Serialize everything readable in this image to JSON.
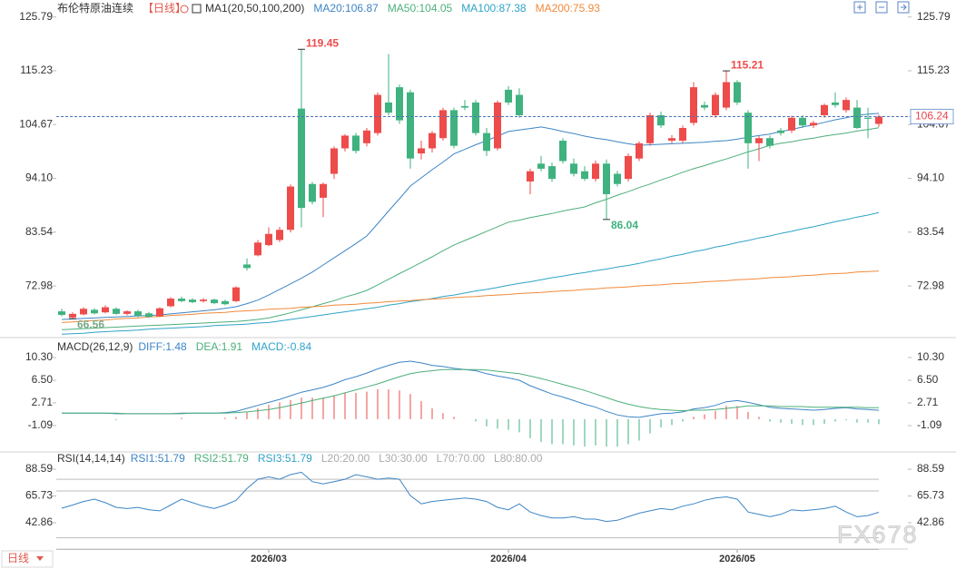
{
  "header": {
    "title": "布伦特原油连续",
    "period": "【日线】",
    "ma_group": "MA1(20,50,100,200)"
  },
  "chart_data": [
    {
      "type": "candlestick",
      "categories": [
        null,
        null,
        null,
        null,
        null,
        null,
        null,
        null,
        null,
        null,
        null,
        null,
        null,
        null,
        null,
        null,
        null,
        null,
        null,
        "2026/03",
        null,
        null,
        null,
        null,
        null,
        null,
        null,
        null,
        null,
        null,
        null,
        null,
        null,
        null,
        null,
        null,
        null,
        null,
        null,
        null,
        null,
        "2026/04",
        null,
        null,
        null,
        null,
        null,
        null,
        null,
        null,
        null,
        null,
        null,
        null,
        null,
        null,
        null,
        null,
        null,
        null,
        null,
        null,
        "2026/05",
        null,
        null,
        null,
        null,
        null,
        null,
        null,
        null,
        null,
        null,
        null,
        null,
        null
      ],
      "open": [
        68.0,
        66.8,
        67.4,
        68.3,
        67.8,
        68.5,
        67.5,
        68.0,
        67.6,
        67.0,
        69.0,
        70.5,
        70.3,
        70.0,
        70.3,
        70.0,
        70.0,
        77.2,
        79.0,
        81.0,
        82.0,
        84.0,
        107.8,
        93.0,
        90.3,
        95.0,
        100.0,
        102.5,
        101.0,
        103.0,
        109.0,
        112.0,
        111.0,
        99.0,
        100.0,
        102.0,
        107.5,
        108.3,
        109.0,
        103.0,
        100.0,
        111.5,
        110.5,
        93.5,
        97.0,
        96.5,
        101.5,
        97.0,
        95.5,
        94.0,
        97.0,
        95.0,
        94.0,
        98.0,
        101.0,
        106.5,
        101.5,
        101.5,
        105.0,
        108.5,
        106.5,
        108.0,
        113.0,
        107.0,
        101.0,
        102.0,
        103.5,
        103.5,
        106.0,
        104.5,
        106.5,
        109.0,
        107.5,
        108.0,
        106.0,
        104.8
      ],
      "high": [
        68.5,
        67.8,
        68.8,
        68.6,
        69.2,
        68.8,
        68.2,
        68.3,
        67.9,
        68.8,
        70.8,
        70.9,
        70.6,
        70.6,
        70.5,
        70.3,
        72.9,
        78.4,
        82.0,
        84.5,
        84.6,
        92.9,
        119.45,
        93.4,
        93.3,
        100.4,
        102.8,
        103.0,
        104.0,
        111.0,
        118.5,
        112.5,
        111.5,
        101.5,
        103.4,
        108.0,
        108.0,
        109.5,
        109.5,
        104.0,
        109.4,
        112.2,
        111.8,
        96.0,
        98.5,
        97.2,
        102.0,
        98.0,
        96.5,
        97.6,
        97.8,
        95.6,
        99.0,
        101.4,
        107.0,
        107.2,
        102.6,
        104.5,
        113.0,
        109.2,
        111.0,
        115.21,
        113.4,
        107.5,
        102.4,
        102.5,
        104.0,
        106.4,
        106.5,
        105.4,
        108.8,
        111.0,
        110.0,
        109.5,
        108.0,
        106.6
      ],
      "low": [
        67.0,
        66.56,
        67.2,
        67.4,
        67.6,
        67.3,
        67.2,
        66.8,
        66.7,
        66.9,
        68.8,
        69.8,
        69.6,
        69.7,
        69.4,
        69.2,
        69.8,
        76.0,
        78.8,
        80.8,
        81.6,
        83.5,
        84.5,
        89.0,
        86.5,
        94.0,
        99.4,
        99.0,
        100.4,
        102.5,
        106.5,
        104.8,
        96.0,
        97.8,
        99.2,
        101.5,
        100.0,
        107.5,
        102.5,
        98.5,
        99.6,
        108.5,
        106.0,
        91.0,
        95.5,
        93.4,
        97.0,
        94.5,
        93.6,
        93.5,
        86.04,
        92.5,
        93.5,
        97.5,
        100.5,
        104.0,
        101.0,
        101.0,
        104.5,
        107.5,
        106.0,
        107.5,
        108.5,
        96.0,
        97.5,
        100.0,
        102.5,
        103.0,
        104.0,
        104.0,
        106.0,
        108.0,
        107.0,
        103.8,
        102.0,
        104.2
      ],
      "close": [
        67.3,
        67.5,
        68.5,
        67.6,
        68.8,
        67.5,
        68.0,
        67.1,
        66.9,
        68.6,
        70.5,
        70.0,
        69.8,
        70.3,
        69.6,
        69.4,
        72.7,
        76.5,
        81.5,
        83.2,
        84.0,
        92.5,
        88.3,
        89.5,
        93.0,
        100.0,
        102.5,
        99.5,
        103.5,
        110.5,
        107.0,
        105.5,
        98.0,
        100.0,
        103.0,
        107.5,
        100.5,
        108.0,
        103.0,
        99.5,
        109.0,
        109.0,
        106.5,
        95.5,
        96.0,
        94.0,
        97.5,
        95.0,
        94.0,
        97.0,
        91.0,
        93.0,
        98.5,
        101.0,
        106.5,
        104.5,
        102.0,
        104.0,
        112.0,
        108.0,
        110.5,
        113.0,
        109.0,
        101.0,
        102.0,
        100.5,
        103.0,
        106.0,
        104.5,
        105.0,
        108.5,
        108.5,
        109.5,
        104.0,
        105.8,
        106.24
      ],
      "up_color": "#ee4b4b",
      "down_color": "#3fb27f",
      "series": [
        {
          "name": "MA20:106.87",
          "color": "#3d85c6",
          "values": [
            66.4,
            66.5,
            66.6,
            66.7,
            66.8,
            66.9,
            67.0,
            67.1,
            67.2,
            67.3,
            67.5,
            67.7,
            67.9,
            68.1,
            68.3,
            68.6,
            68.9,
            69.5,
            70.2,
            71.2,
            72.3,
            73.4,
            74.5,
            75.7,
            77.1,
            78.5,
            79.9,
            81.3,
            82.8,
            85.2,
            87.7,
            90.1,
            92.6,
            94.2,
            95.8,
            97.3,
            98.9,
            99.8,
            100.7,
            101.5,
            102.4,
            103.3,
            103.6,
            103.9,
            104.2,
            103.8,
            103.3,
            102.9,
            102.4,
            102.0,
            101.7,
            101.3,
            100.9,
            100.6,
            100.7,
            100.8,
            100.9,
            101.0,
            101.1,
            101.2,
            101.4,
            101.5,
            101.8,
            102.2,
            102.5,
            102.8,
            103.3,
            103.7,
            104.2,
            104.6,
            105.1,
            105.6,
            106.0,
            106.5,
            106.7,
            106.87
          ]
        },
        {
          "name": "MA50:104.05",
          "color": "#4caf7a",
          "values": [
            64.4,
            64.5,
            64.6,
            64.7,
            64.8,
            64.9,
            65.0,
            65.1,
            65.2,
            65.3,
            65.4,
            65.5,
            65.6,
            65.7,
            65.8,
            65.9,
            66.0,
            66.2,
            66.4,
            66.7,
            67.2,
            67.7,
            68.3,
            68.9,
            69.5,
            70.1,
            70.8,
            71.4,
            72.1,
            73.2,
            74.3,
            75.4,
            76.5,
            77.6,
            78.7,
            79.9,
            81.0,
            81.9,
            82.8,
            83.7,
            84.6,
            85.5,
            85.9,
            86.4,
            86.8,
            87.2,
            87.7,
            88.1,
            88.5,
            89.3,
            90.0,
            90.8,
            91.5,
            92.3,
            93.0,
            93.8,
            94.5,
            95.3,
            96.0,
            96.6,
            97.3,
            97.9,
            98.6,
            99.3,
            99.9,
            100.6,
            101.0,
            101.3,
            101.7,
            102.0,
            102.4,
            102.7,
            103.0,
            103.4,
            103.7,
            104.05
          ]
        },
        {
          "name": "MA100:87.38",
          "color": "#2fa3c7",
          "values": [
            63.5,
            63.6,
            63.7,
            63.9,
            64.0,
            64.1,
            64.2,
            64.3,
            64.5,
            64.6,
            64.7,
            64.8,
            64.9,
            65.0,
            65.2,
            65.3,
            65.4,
            65.5,
            65.7,
            65.8,
            66.1,
            66.4,
            66.7,
            67.0,
            67.3,
            67.6,
            67.9,
            68.2,
            68.5,
            68.8,
            69.2,
            69.5,
            69.9,
            70.2,
            70.5,
            70.9,
            71.2,
            71.6,
            72.0,
            72.3,
            72.7,
            73.1,
            73.5,
            73.8,
            74.2,
            74.6,
            74.9,
            75.3,
            75.6,
            76.0,
            76.3,
            76.7,
            77.0,
            77.4,
            77.9,
            78.3,
            78.8,
            79.2,
            79.7,
            80.1,
            80.6,
            81.0,
            81.5,
            81.9,
            82.4,
            82.8,
            83.3,
            83.7,
            84.2,
            84.6,
            85.1,
            85.6,
            86.0,
            86.5,
            86.9,
            87.38
          ]
        },
        {
          "name": "MA200:75.93",
          "color": "#f08a3c",
          "values": [
            65.8,
            65.9,
            66.1,
            66.2,
            66.3,
            66.5,
            66.6,
            66.7,
            66.9,
            67.0,
            67.2,
            67.3,
            67.4,
            67.6,
            67.7,
            67.8,
            68.0,
            68.1,
            68.2,
            68.4,
            68.5,
            68.6,
            68.8,
            68.9,
            69.0,
            69.2,
            69.3,
            69.4,
            69.6,
            69.7,
            69.9,
            70.0,
            70.1,
            70.3,
            70.4,
            70.5,
            70.7,
            70.8,
            70.9,
            71.1,
            71.2,
            71.3,
            71.5,
            71.6,
            71.7,
            71.9,
            72.0,
            72.1,
            72.3,
            72.4,
            72.6,
            72.7,
            72.8,
            73.0,
            73.1,
            73.2,
            73.4,
            73.5,
            73.6,
            73.8,
            73.9,
            74.0,
            74.2,
            74.3,
            74.4,
            74.6,
            74.7,
            74.8,
            75.0,
            75.1,
            75.3,
            75.4,
            75.5,
            75.7,
            75.8,
            75.93
          ]
        }
      ],
      "ylim": [
        63.2,
        127.7
      ],
      "yticks": [
        125.79,
        115.23,
        104.67,
        {
          "value": 94.1,
          "label": "94.10"
        },
        83.54,
        72.98
      ]
    },
    {
      "type": "macd",
      "title": "MACD(26,12,9)",
      "series": [
        {
          "name": "DIFF:1.48",
          "color": "#3d85c6",
          "values": [
            1.0,
            1.0,
            1.0,
            1.0,
            1.0,
            0.9,
            0.9,
            0.9,
            0.9,
            0.9,
            0.9,
            1.0,
            1.0,
            1.0,
            1.0,
            1.1,
            1.3,
            1.8,
            2.3,
            2.8,
            3.3,
            3.9,
            4.5,
            4.9,
            5.3,
            5.9,
            6.6,
            7.1,
            7.7,
            8.4,
            9.0,
            9.5,
            9.7,
            9.4,
            9.0,
            8.8,
            8.5,
            8.3,
            8.1,
            7.6,
            7.2,
            6.9,
            6.5,
            5.6,
            4.9,
            4.2,
            3.7,
            3.1,
            2.5,
            2.0,
            1.3,
            0.7,
            0.4,
            0.3,
            0.6,
            0.9,
            1.0,
            1.2,
            1.7,
            1.9,
            2.3,
            2.9,
            3.1,
            2.8,
            2.4,
            2.0,
            1.8,
            1.7,
            1.6,
            1.5,
            1.6,
            1.8,
            1.9,
            1.7,
            1.6,
            1.48
          ]
        },
        {
          "name": "DEA:1.91",
          "color": "#4caf7a",
          "values": [
            1.0,
            1.0,
            1.0,
            1.0,
            1.0,
            1.0,
            0.9,
            0.9,
            0.9,
            0.9,
            0.9,
            0.9,
            1.0,
            1.0,
            1.0,
            1.0,
            1.1,
            1.2,
            1.4,
            1.6,
            1.9,
            2.3,
            2.7,
            3.1,
            3.5,
            3.9,
            4.4,
            4.9,
            5.4,
            5.9,
            6.5,
            7.1,
            7.6,
            7.9,
            8.1,
            8.3,
            8.3,
            8.3,
            8.3,
            8.2,
            8.0,
            7.8,
            7.6,
            7.2,
            6.8,
            6.3,
            5.8,
            5.3,
            4.8,
            4.2,
            3.6,
            3.0,
            2.5,
            2.1,
            1.8,
            1.6,
            1.5,
            1.4,
            1.5,
            1.5,
            1.6,
            1.8,
            2.0,
            2.2,
            2.2,
            2.2,
            2.1,
            2.1,
            2.1,
            2.0,
            2.0,
            2.0,
            2.0,
            2.0,
            1.9,
            1.91
          ]
        }
      ],
      "histogram": {
        "name": "MACD:-0.84",
        "color": "#2fa3c7",
        "up_color": "#ee4b4b",
        "down_color": "#3fb27f",
        "values": [
          0,
          0,
          0,
          0,
          0,
          -0.2,
          0,
          0,
          0,
          0,
          0,
          0.2,
          0,
          0,
          0,
          0.2,
          0.4,
          1.2,
          1.8,
          2.4,
          2.8,
          3.2,
          3.6,
          3.6,
          3.6,
          4.0,
          4.4,
          4.4,
          4.6,
          5.0,
          5.0,
          4.8,
          4.2,
          3.0,
          1.8,
          1.0,
          0.4,
          0,
          -0.4,
          -1.2,
          -1.6,
          -1.8,
          -2.2,
          -3.2,
          -3.8,
          -4.2,
          -4.2,
          -4.4,
          -4.6,
          -4.4,
          -4.6,
          -4.6,
          -4.2,
          -3.6,
          -2.4,
          -1.4,
          -1.0,
          -0.4,
          0.4,
          0.8,
          1.4,
          2.2,
          2.2,
          1.2,
          0.4,
          -0.4,
          -0.6,
          -0.8,
          -1.0,
          -1.0,
          -0.8,
          -0.4,
          -0.2,
          -0.6,
          -0.6,
          -0.84
        ]
      },
      "ylim": [
        -5.34,
        12.73
      ],
      "yticks": [
        {
          "value": 10.3,
          "label": "10.30"
        },
        {
          "value": 6.5,
          "label": "6.50"
        },
        2.71,
        -1.09
      ]
    },
    {
      "type": "rsi",
      "title": "RSI(14,14,14)",
      "series": [
        {
          "name": "RSI1:51.79",
          "color": "#3d85c6",
          "values": [
            55.3,
            58,
            61,
            63,
            60,
            56,
            55,
            56,
            54,
            53,
            58,
            63,
            60,
            57,
            55,
            58,
            62,
            72,
            80,
            82,
            80,
            84,
            86,
            78,
            76,
            78,
            80,
            84,
            82,
            80,
            81,
            80,
            66,
            59,
            61,
            62,
            63,
            64,
            63,
            61,
            56,
            54,
            59,
            52,
            49,
            47,
            47,
            48,
            46,
            46,
            44,
            45,
            48,
            51,
            53,
            55,
            54,
            57,
            59,
            62,
            64,
            65,
            63,
            52,
            50,
            48,
            50,
            54,
            53,
            54,
            55,
            57,
            52,
            48,
            49,
            51.79
          ]
        }
      ],
      "legend": [
        {
          "name": "RSI2:51.79",
          "color": "#4caf7a"
        },
        {
          "name": "RSI3:51.79",
          "color": "#2fa3c7"
        }
      ],
      "levels": [
        {
          "value": 20,
          "label": "L20:20.00"
        },
        {
          "value": 30,
          "label": "L30:30.00"
        },
        {
          "value": 70,
          "label": "L70:70.00"
        },
        {
          "value": 80,
          "label": "L80:80.00"
        }
      ],
      "ylim": [
        20.4,
        101.8
      ],
      "yticks": [
        88.59,
        65.73,
        42.86
      ]
    }
  ],
  "footer": {
    "period_button": "日线",
    "watermark": "FX678"
  }
}
